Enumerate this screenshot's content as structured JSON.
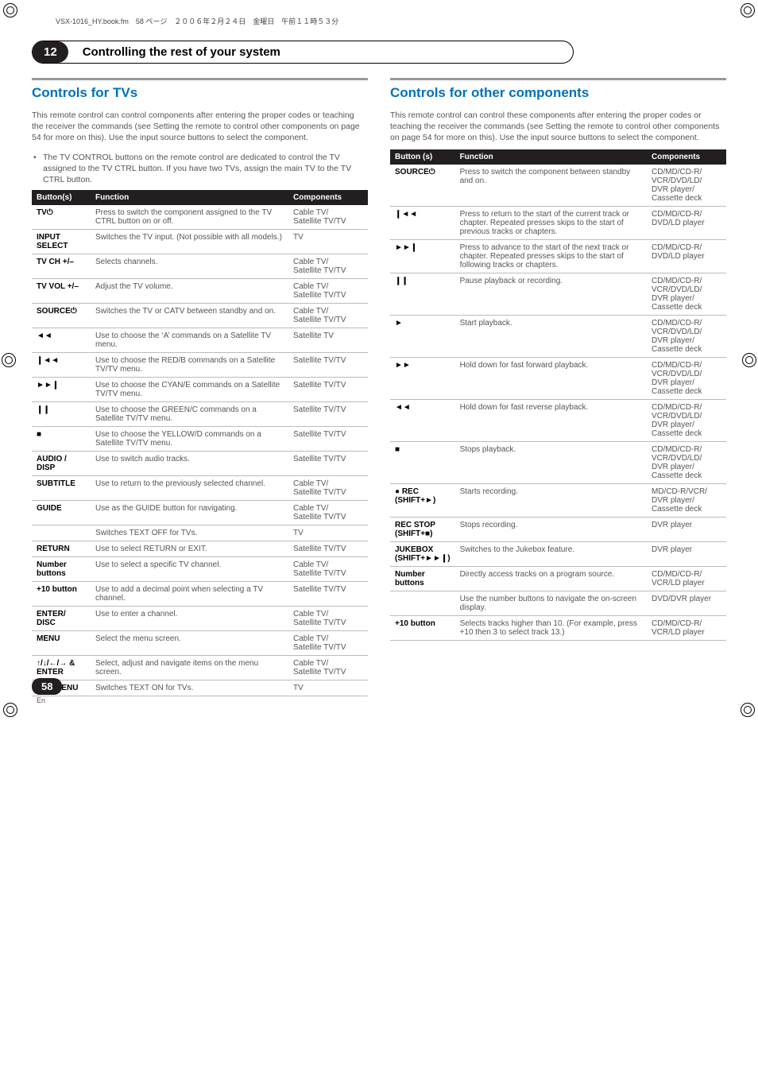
{
  "header_line": "VSX-1016_HY.book.fm　58 ページ　２００６年２月２４日　金曜日　午前１１時５３分",
  "chapter_badge": "12",
  "chapter_title": "Controlling the rest of your system",
  "page_number": "58",
  "page_lang": "En",
  "left": {
    "heading": "Controls for TVs",
    "intro": "This remote control can control components after entering the proper codes or teaching the receiver the commands (see Setting the remote to control other components on page 54 for more on this). Use the input source buttons to select the component.",
    "bullet": "The TV CONTROL buttons on the remote control are dedicated to control the TV assigned to the TV CTRL button. If you have two TVs, assign the main TV to the TV CTRL button.",
    "thead": {
      "c1": "Button(s)",
      "c2": "Function",
      "c3": "Components"
    },
    "rows": [
      {
        "b": "TV⏻",
        "f": "Press to switch the component assigned to the TV CTRL button on or off.",
        "c": "Cable TV/\nSatellite TV/TV"
      },
      {
        "b": "INPUT SELECT",
        "f": "Switches the TV input. (Not possible with all models.)",
        "c": "TV"
      },
      {
        "b": "TV CH +/–",
        "f": "Selects channels.",
        "c": "Cable TV/\nSatellite TV/TV"
      },
      {
        "b": "TV VOL +/–",
        "f": "Adjust the TV volume.",
        "c": "Cable TV/\nSatellite TV/TV"
      },
      {
        "b": "SOURCE⏻",
        "f": "Switches the TV or CATV between standby and on.",
        "c": "Cable TV/\nSatellite TV/TV"
      },
      {
        "b": "◄◄",
        "f": "Use to choose the ‘A’ commands on a Satellite TV menu.",
        "c": "Satellite TV"
      },
      {
        "b": "❙◄◄",
        "f": "Use to choose the RED/B commands on a Satellite TV/TV menu.",
        "c": "Satellite TV/TV"
      },
      {
        "b": "►►❙",
        "f": "Use to choose the CYAN/E commands on a Satellite TV/TV menu.",
        "c": "Satellite TV/TV"
      },
      {
        "b": "❙❙",
        "f": "Use to choose the GREEN/C commands on a Satellite TV/TV menu.",
        "c": "Satellite TV/TV"
      },
      {
        "b": "■",
        "f": "Use to choose the YELLOW/D commands on a Satellite TV/TV menu.",
        "c": "Satellite TV/TV"
      },
      {
        "b": "AUDIO / DISP",
        "f": "Use to switch audio tracks.",
        "c": "Satellite TV/TV"
      },
      {
        "b": "SUBTITLE",
        "f": "Use to return to the previously selected channel.",
        "c": "Cable TV/\nSatellite TV/TV"
      },
      {
        "b": "GUIDE",
        "f": "Use as the GUIDE button for navigating.",
        "c": "Cable TV/\nSatellite TV/TV"
      },
      {
        "b": "",
        "f": "Switches TEXT OFF for TVs.",
        "c": "TV"
      },
      {
        "b": "RETURN",
        "f": "Use to select RETURN or EXIT.",
        "c": "Satellite TV/TV"
      },
      {
        "b": "Number buttons",
        "f": "Use to select a specific TV channel.",
        "c": "Cable TV/\nSatellite TV/TV"
      },
      {
        "b": "+10 button",
        "f": "Use to add a decimal point when selecting a TV channel.",
        "c": "Satellite TV/TV"
      },
      {
        "b": "ENTER/\nDISC",
        "f": "Use to enter a channel.",
        "c": "Cable TV/\nSatellite TV/TV"
      },
      {
        "b": "MENU",
        "f": "Select the menu screen.",
        "c": "Cable TV/\nSatellite TV/TV"
      },
      {
        "b": "↑/↓/←/→ & ENTER",
        "f": "Select, adjust and navigate items on the menu screen.",
        "c": "Cable TV/\nSatellite TV/TV"
      },
      {
        "b": "TOP MENU",
        "f": "Switches TEXT ON for TVs.",
        "c": "TV"
      }
    ]
  },
  "right": {
    "heading": "Controls for other components",
    "intro": "This remote control can control these components after entering the proper codes or teaching the receiver the commands (see Setting the remote to control other components on page 54 for more on this). Use the input source buttons to select the component.",
    "thead": {
      "c1": "Button (s)",
      "c2": "Function",
      "c3": "Components"
    },
    "rows": [
      {
        "b": "SOURCE⏻",
        "f": "Press to switch the component between standby and on.",
        "c": "CD/MD/CD-R/\nVCR/DVD/LD/\nDVR player/\nCassette deck"
      },
      {
        "b": "❙◄◄",
        "f": "Press to return to the start of the current track or chapter. Repeated presses skips to the start of previous tracks or chapters.",
        "c": "CD/MD/CD-R/\nDVD/LD player"
      },
      {
        "b": "►►❙",
        "f": "Press to advance to the start of the next track or chapter. Repeated presses skips to the start of following tracks or chapters.",
        "c": "CD/MD/CD-R/\nDVD/LD player"
      },
      {
        "b": "❙❙",
        "f": "Pause playback or recording.",
        "c": "CD/MD/CD-R/\nVCR/DVD/LD/\nDVR player/\nCassette deck"
      },
      {
        "b": "►",
        "f": "Start playback.",
        "c": "CD/MD/CD-R/\nVCR/DVD/LD/\nDVR player/\nCassette deck"
      },
      {
        "b": "►►",
        "f": "Hold down for fast forward playback.",
        "c": "CD/MD/CD-R/\nVCR/DVD/LD/\nDVR player/\nCassette deck"
      },
      {
        "b": "◄◄",
        "f": "Hold down for fast reverse playback.",
        "c": "CD/MD/CD-R/\nVCR/DVD/LD/\nDVR player/\nCassette deck"
      },
      {
        "b": "■",
        "f": "Stops playback.",
        "c": "CD/MD/CD-R/\nVCR/DVD/LD/\nDVR player/\nCassette deck"
      },
      {
        "b": "● REC\n(SHIFT+►)",
        "f": "Starts recording.",
        "c": "MD/CD-R/VCR/\nDVR player/\nCassette deck"
      },
      {
        "b": "REC STOP\n(SHIFT+■)",
        "f": "Stops recording.",
        "c": "DVR player"
      },
      {
        "b": "JUKEBOX\n(SHIFT+►►❙)",
        "f": "Switches to the Jukebox feature.",
        "c": "DVR player"
      },
      {
        "b": "Number buttons",
        "f": "Directly access tracks on a program source.",
        "c": "CD/MD/CD-R/\nVCR/LD player"
      },
      {
        "b": "",
        "f": "Use the number buttons to navigate the on-screen display.",
        "c": "DVD/DVR player"
      },
      {
        "b": "+10 button",
        "f": "Selects tracks higher than 10. (For example, press +10 then 3 to select track 13.)",
        "c": "CD/MD/CD-R/\nVCR/LD player"
      }
    ]
  }
}
